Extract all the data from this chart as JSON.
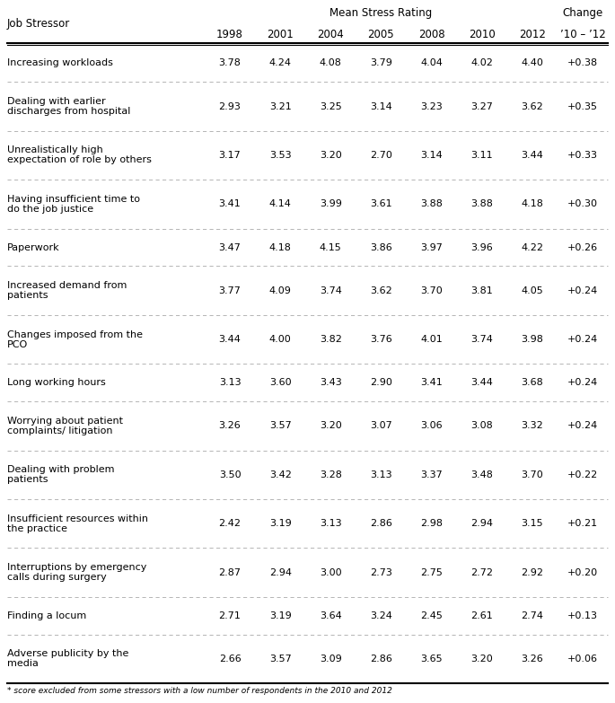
{
  "title_line1": "Mean Stress Rating",
  "title_line2": "Change",
  "col_header_stressor": "Job Stressor",
  "col_headers": [
    "1998",
    "2001",
    "2004",
    "2005",
    "2008",
    "2010",
    "2012",
    "’10 – ’12"
  ],
  "rows": [
    {
      "stressor": "Increasing workloads",
      "values": [
        "3.78",
        "4.24",
        "4.08",
        "3.79",
        "4.04",
        "4.02",
        "4.40",
        "+0.38"
      ]
    },
    {
      "stressor": "Dealing with earlier\ndischarges from hospital",
      "values": [
        "2.93",
        "3.21",
        "3.25",
        "3.14",
        "3.23",
        "3.27",
        "3.62",
        "+0.35"
      ]
    },
    {
      "stressor": "Unrealistically high\nexpectation of role by others",
      "values": [
        "3.17",
        "3.53",
        "3.20",
        "2.70",
        "3.14",
        "3.11",
        "3.44",
        "+0.33"
      ]
    },
    {
      "stressor": "Having insufficient time to\ndo the job justice",
      "values": [
        "3.41",
        "4.14",
        "3.99",
        "3.61",
        "3.88",
        "3.88",
        "4.18",
        "+0.30"
      ]
    },
    {
      "stressor": "Paperwork",
      "values": [
        "3.47",
        "4.18",
        "4.15",
        "3.86",
        "3.97",
        "3.96",
        "4.22",
        "+0.26"
      ]
    },
    {
      "stressor": "Increased demand from\npatients",
      "values": [
        "3.77",
        "4.09",
        "3.74",
        "3.62",
        "3.70",
        "3.81",
        "4.05",
        "+0.24"
      ]
    },
    {
      "stressor": "Changes imposed from the\nPCO",
      "values": [
        "3.44",
        "4.00",
        "3.82",
        "3.76",
        "4.01",
        "3.74",
        "3.98",
        "+0.24"
      ]
    },
    {
      "stressor": "Long working hours",
      "values": [
        "3.13",
        "3.60",
        "3.43",
        "2.90",
        "3.41",
        "3.44",
        "3.68",
        "+0.24"
      ]
    },
    {
      "stressor": "Worrying about patient\ncomplaints/ litigation",
      "values": [
        "3.26",
        "3.57",
        "3.20",
        "3.07",
        "3.06",
        "3.08",
        "3.32",
        "+0.24"
      ]
    },
    {
      "stressor": "Dealing with problem\npatients",
      "values": [
        "3.50",
        "3.42",
        "3.28",
        "3.13",
        "3.37",
        "3.48",
        "3.70",
        "+0.22"
      ]
    },
    {
      "stressor": "Insufficient resources within\nthe practice",
      "values": [
        "2.42",
        "3.19",
        "3.13",
        "2.86",
        "2.98",
        "2.94",
        "3.15",
        "+0.21"
      ]
    },
    {
      "stressor": "Interruptions by emergency\ncalls during surgery",
      "values": [
        "2.87",
        "2.94",
        "3.00",
        "2.73",
        "2.75",
        "2.72",
        "2.92",
        "+0.20"
      ]
    },
    {
      "stressor": "Finding a locum",
      "values": [
        "2.71",
        "3.19",
        "3.64",
        "3.24",
        "2.45",
        "2.61",
        "2.74",
        "+0.13"
      ]
    },
    {
      "stressor": "Adverse publicity by the\nmedia",
      "values": [
        "2.66",
        "3.57",
        "3.09",
        "2.86",
        "3.65",
        "3.20",
        "3.26",
        "+0.06"
      ]
    }
  ],
  "footnote": "* score excluded from some stressors with a low number of respondents in the 2010 and 2012",
  "bg_color": "#ffffff",
  "text_color": "#000000",
  "line_color_thin": "#aaaaaa",
  "thick_line_color": "#000000",
  "fig_width": 6.85,
  "fig_height": 7.83,
  "dpi": 100
}
